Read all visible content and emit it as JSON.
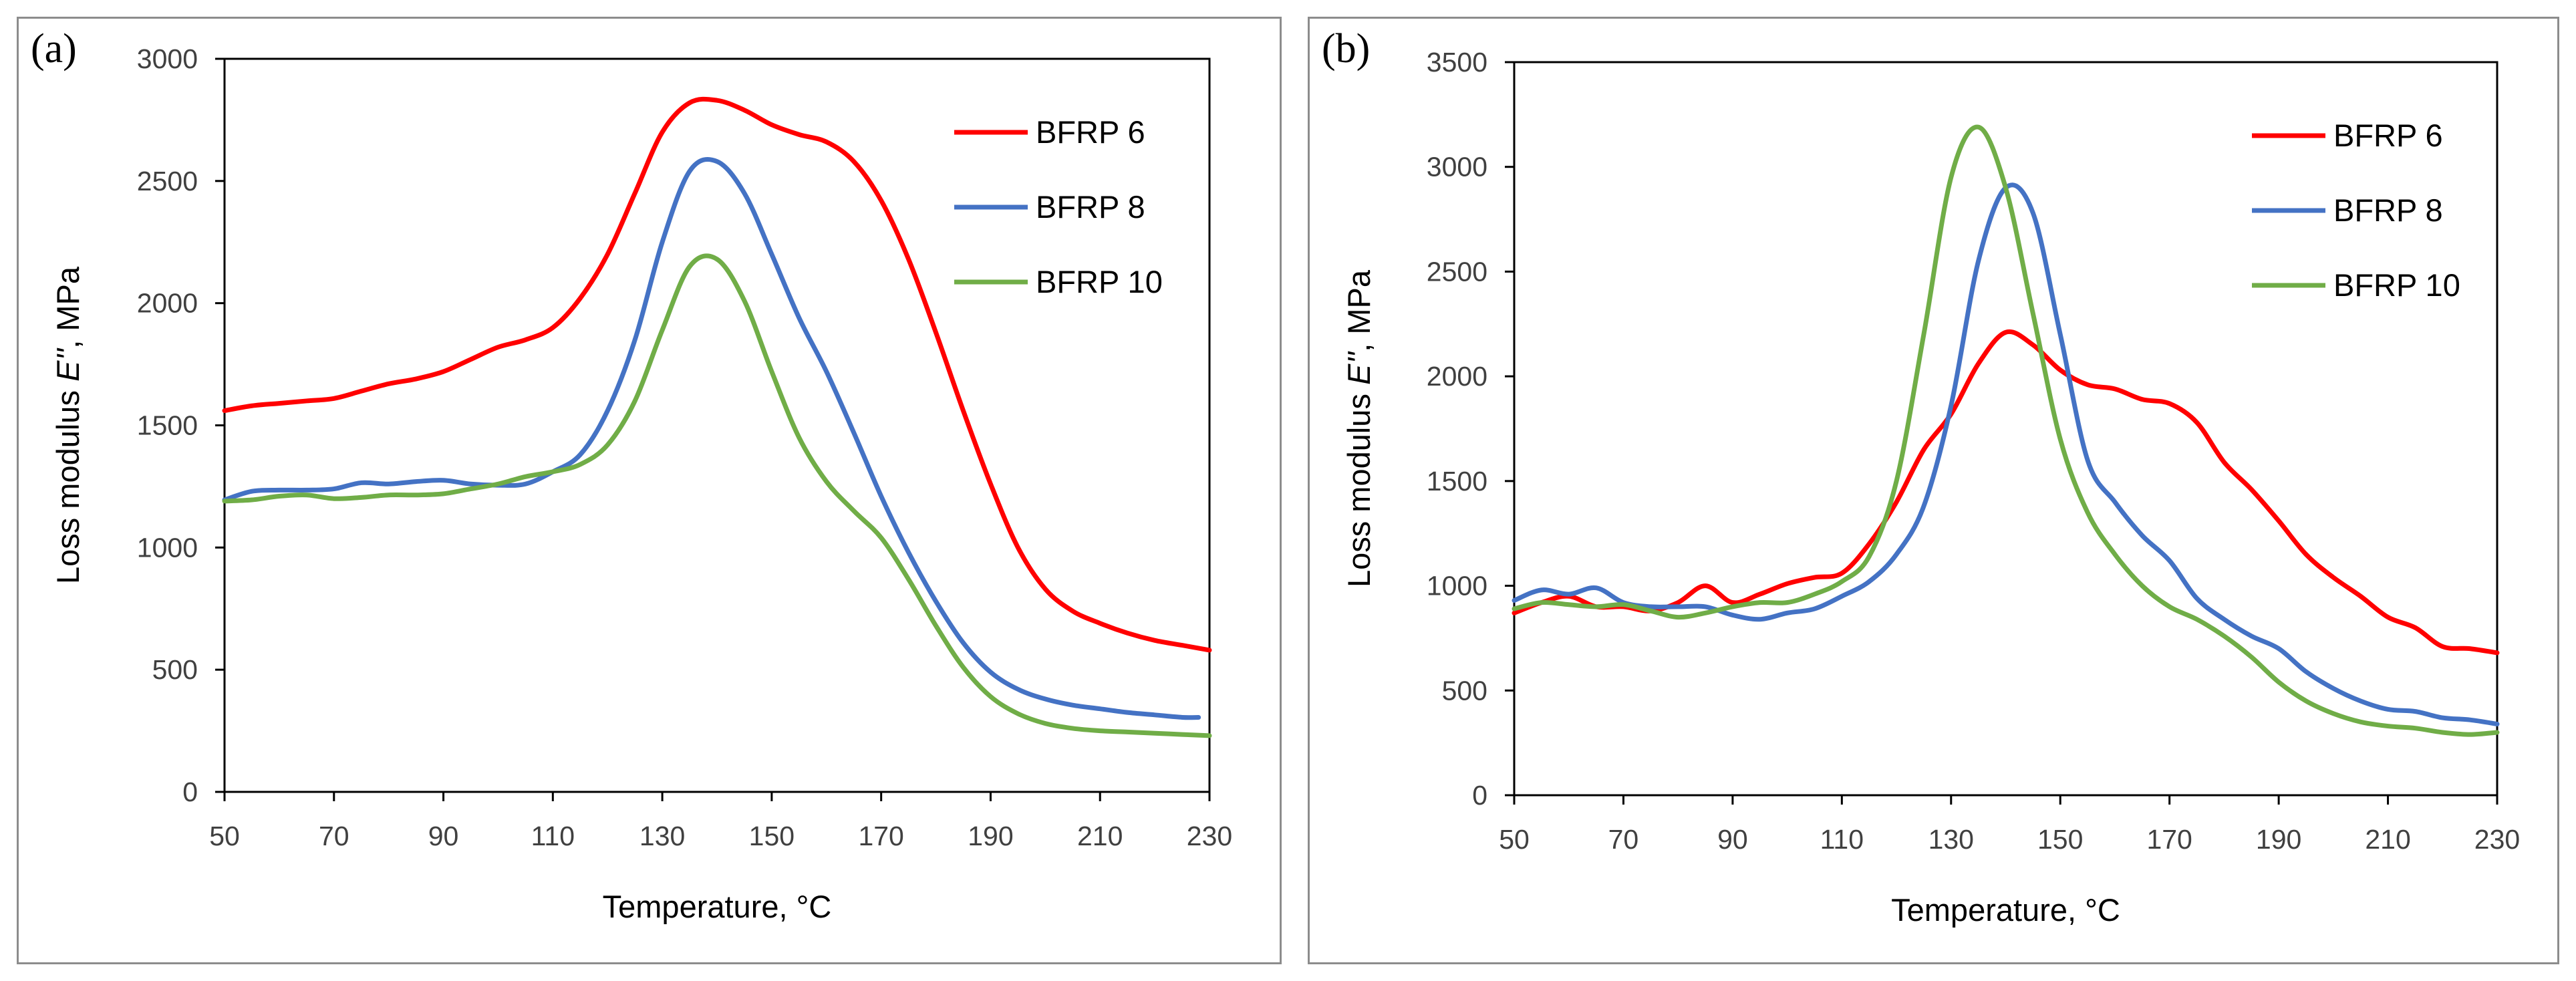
{
  "chart_data": [
    {
      "type": "line",
      "panel_label": "(a)",
      "xlabel": "Temperature, °C",
      "ylabel_prefix": "Loss modulus ",
      "ylabel_symbol": "E''",
      "ylabel_suffix": ", MPa",
      "xlim": [
        50,
        230
      ],
      "ylim": [
        0,
        3000
      ],
      "x_ticks": [
        50,
        70,
        90,
        110,
        130,
        150,
        170,
        190,
        210,
        230
      ],
      "y_ticks": [
        0,
        500,
        1000,
        1500,
        2000,
        2500,
        3000
      ],
      "legend_position": "top-right",
      "series": [
        {
          "name": "BFRP 6",
          "color": "#ff0000",
          "x": [
            50,
            55,
            60,
            65,
            70,
            75,
            80,
            85,
            90,
            95,
            100,
            105,
            110,
            115,
            120,
            125,
            130,
            135,
            140,
            145,
            150,
            155,
            160,
            165,
            170,
            175,
            180,
            185,
            190,
            195,
            200,
            205,
            210,
            215,
            220,
            225,
            230
          ],
          "y": [
            1560,
            1580,
            1590,
            1600,
            1610,
            1640,
            1670,
            1690,
            1720,
            1770,
            1820,
            1850,
            1900,
            2020,
            2200,
            2450,
            2700,
            2820,
            2830,
            2790,
            2730,
            2690,
            2660,
            2580,
            2420,
            2180,
            1880,
            1560,
            1260,
            1000,
            830,
            740,
            690,
            650,
            620,
            600,
            580
          ]
        },
        {
          "name": "BFRP 8",
          "color": "#4472c4",
          "x": [
            50,
            55,
            60,
            65,
            70,
            75,
            80,
            85,
            90,
            95,
            100,
            105,
            110,
            115,
            120,
            125,
            130,
            135,
            140,
            145,
            150,
            155,
            160,
            165,
            170,
            175,
            180,
            185,
            190,
            195,
            200,
            205,
            210,
            215,
            220,
            225,
            228
          ],
          "y": [
            1195,
            1230,
            1235,
            1235,
            1240,
            1265,
            1260,
            1270,
            1275,
            1260,
            1255,
            1260,
            1310,
            1380,
            1560,
            1850,
            2250,
            2540,
            2580,
            2450,
            2200,
            1940,
            1720,
            1470,
            1210,
            980,
            780,
            610,
            490,
            420,
            380,
            355,
            340,
            325,
            315,
            305,
            305
          ]
        },
        {
          "name": "BFRP 10",
          "color": "#70ad47",
          "x": [
            50,
            55,
            60,
            65,
            70,
            75,
            80,
            85,
            90,
            95,
            100,
            105,
            110,
            115,
            120,
            125,
            130,
            135,
            140,
            145,
            150,
            155,
            160,
            165,
            170,
            175,
            180,
            185,
            190,
            195,
            200,
            205,
            210,
            215,
            220,
            225,
            230
          ],
          "y": [
            1190,
            1195,
            1210,
            1215,
            1200,
            1205,
            1215,
            1215,
            1220,
            1240,
            1260,
            1290,
            1310,
            1340,
            1420,
            1600,
            1890,
            2150,
            2180,
            2010,
            1720,
            1450,
            1270,
            1150,
            1040,
            870,
            680,
            510,
            390,
            320,
            280,
            260,
            250,
            245,
            240,
            235,
            230
          ]
        }
      ]
    },
    {
      "type": "line",
      "panel_label": "(b)",
      "xlabel": "Temperature, °C",
      "ylabel_prefix": "Loss modulus ",
      "ylabel_symbol": "E''",
      "ylabel_suffix": ", MPa",
      "xlim": [
        50,
        230
      ],
      "ylim": [
        0,
        3500
      ],
      "x_ticks": [
        50,
        70,
        90,
        110,
        130,
        150,
        170,
        190,
        210,
        230
      ],
      "y_ticks": [
        0,
        500,
        1000,
        1500,
        2000,
        2500,
        3000,
        3500
      ],
      "legend_position": "top-right",
      "series": [
        {
          "name": "BFRP 6",
          "color": "#ff0000",
          "x": [
            50,
            55,
            60,
            65,
            70,
            75,
            80,
            85,
            90,
            95,
            100,
            105,
            110,
            115,
            120,
            125,
            130,
            135,
            140,
            145,
            150,
            155,
            160,
            165,
            170,
            175,
            180,
            185,
            190,
            195,
            200,
            205,
            210,
            215,
            220,
            225,
            230
          ],
          "y": [
            870,
            920,
            950,
            900,
            900,
            880,
            920,
            1000,
            920,
            960,
            1010,
            1040,
            1060,
            1200,
            1400,
            1650,
            1820,
            2060,
            2210,
            2150,
            2030,
            1960,
            1940,
            1890,
            1870,
            1780,
            1590,
            1460,
            1310,
            1150,
            1040,
            950,
            850,
            800,
            710,
            700,
            680
          ]
        },
        {
          "name": "BFRP 8",
          "color": "#4472c4",
          "x": [
            50,
            55,
            60,
            65,
            70,
            75,
            80,
            85,
            90,
            95,
            100,
            105,
            110,
            115,
            120,
            125,
            130,
            135,
            140,
            145,
            150,
            155,
            160,
            165,
            170,
            175,
            180,
            185,
            190,
            195,
            200,
            205,
            210,
            215,
            220,
            225,
            230
          ],
          "y": [
            930,
            980,
            960,
            990,
            920,
            900,
            900,
            900,
            860,
            840,
            870,
            890,
            950,
            1020,
            1150,
            1380,
            1860,
            2550,
            2900,
            2780,
            2200,
            1600,
            1400,
            1240,
            1120,
            940,
            840,
            760,
            700,
            590,
            510,
            450,
            410,
            400,
            370,
            360,
            340
          ]
        },
        {
          "name": "BFRP 10",
          "color": "#70ad47",
          "x": [
            50,
            55,
            60,
            65,
            70,
            75,
            80,
            85,
            90,
            95,
            100,
            105,
            110,
            115,
            120,
            125,
            130,
            135,
            140,
            145,
            150,
            155,
            160,
            165,
            170,
            175,
            180,
            185,
            190,
            195,
            200,
            205,
            210,
            215,
            220,
            225,
            230
          ],
          "y": [
            890,
            920,
            910,
            900,
            910,
            880,
            850,
            870,
            900,
            920,
            920,
            960,
            1020,
            1140,
            1500,
            2200,
            2950,
            3190,
            2900,
            2300,
            1700,
            1350,
            1150,
            1000,
            900,
            840,
            760,
            660,
            540,
            450,
            390,
            350,
            330,
            320,
            300,
            290,
            300
          ]
        }
      ]
    }
  ]
}
